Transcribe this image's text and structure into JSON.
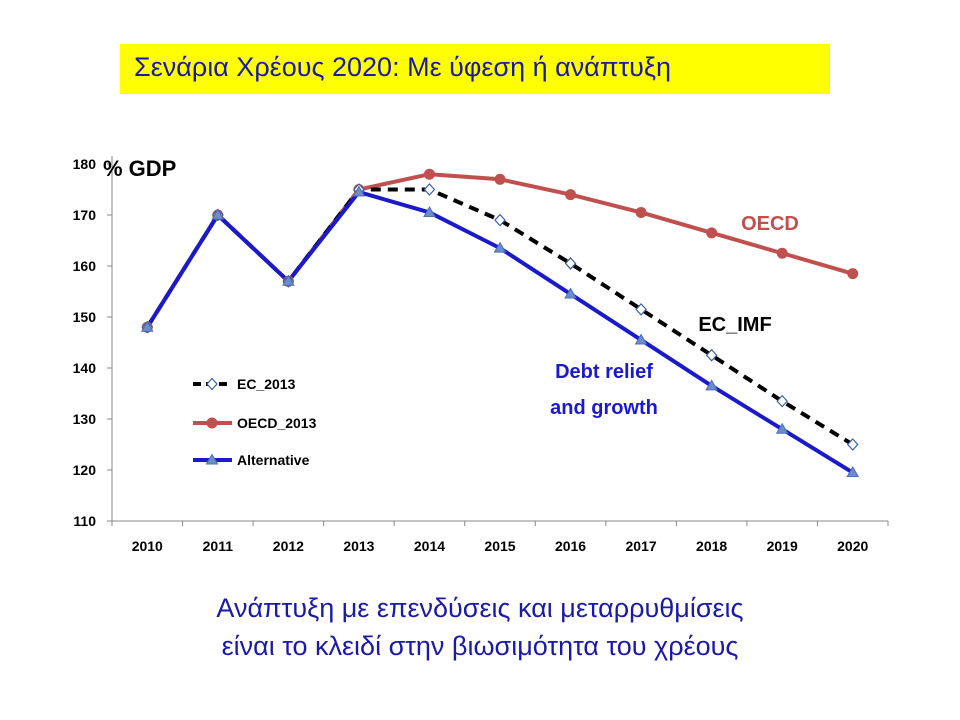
{
  "title": "Σενάρια Χρέους 2020: Με ύφεση ή ανάπτυξη",
  "footer": {
    "line1": "Ανάπτυξη με επενδύσεις και μεταρρυθμίσεις",
    "line2": "είναι το κλειδί στην βιωσιμότητα του χρέους"
  },
  "colors": {
    "title_bg": "#ffff00",
    "title_text": "#1a1aa6",
    "ec": "#000000",
    "oecd": "#c0504d",
    "alternative": "#1a1acc"
  },
  "chart_data": {
    "type": "line",
    "ylabel": "% GDP",
    "ylim": [
      110,
      180
    ],
    "yticks": [
      110,
      120,
      130,
      140,
      150,
      160,
      170,
      180
    ],
    "x": [
      "2010",
      "2011",
      "2012",
      "2013",
      "2014",
      "2015",
      "2016",
      "2017",
      "2018",
      "2019",
      "2020"
    ],
    "grid": false,
    "legend_position": "left",
    "series": [
      {
        "name": "EC_2013",
        "values": [
          148,
          170,
          157,
          175,
          175,
          169,
          160.5,
          151.5,
          142.5,
          133.5,
          125
        ],
        "style": "dashed",
        "marker": "diamond-open"
      },
      {
        "name": "OECD_2013",
        "values": [
          148,
          170,
          157,
          175,
          178,
          177,
          174,
          170.5,
          166.5,
          162.5,
          158.5
        ],
        "style": "solid",
        "marker": "circle"
      },
      {
        "name": "Alternative",
        "values": [
          148,
          170,
          157,
          174.5,
          170.5,
          163.5,
          154.5,
          145.5,
          136.5,
          128,
          119.5
        ],
        "style": "solid",
        "marker": "triangle"
      }
    ],
    "annotations": [
      {
        "text": "OECD",
        "series": "OECD_2013"
      },
      {
        "text": "EC_IMF",
        "series": "EC_2013"
      },
      {
        "text_lines": [
          "Debt relief",
          "and growth"
        ],
        "series": "Alternative"
      }
    ]
  }
}
